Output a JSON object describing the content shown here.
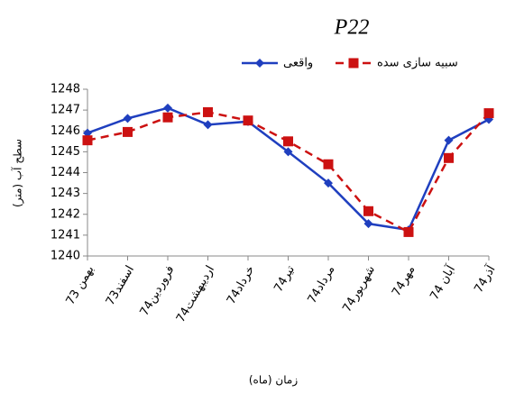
{
  "chart_data": {
    "type": "line",
    "title": "P22",
    "x_label": "زمان (ماه)",
    "y_label": "سطح آب (متر)",
    "categories": [
      "بهمن 73",
      "اسفند73",
      "فروردین74",
      "اردیبهشت74",
      "خرداد74",
      "تیر74",
      "مرداد74",
      "شهریور74",
      "مهر74",
      "آبان 74",
      "آذر74"
    ],
    "series": [
      {
        "name": "واقعی",
        "color": "#1f3fbf",
        "marker": "diamond",
        "dashed": false,
        "values": [
          1245.9,
          1246.6,
          1247.1,
          1246.3,
          1246.45,
          1245.0,
          1243.5,
          1241.55,
          1241.25,
          1245.55,
          1246.55
        ]
      },
      {
        "name": "سبیه سازی سده",
        "color": "#cc1111",
        "marker": "square",
        "dashed": true,
        "values": [
          1245.55,
          1245.95,
          1246.65,
          1246.9,
          1246.5,
          1245.5,
          1244.4,
          1242.15,
          1241.15,
          1244.7,
          1246.85
        ]
      }
    ],
    "ylim": [
      1240,
      1248
    ],
    "yticks": [
      1240,
      1241,
      1242,
      1243,
      1244,
      1245,
      1246,
      1247,
      1248
    ],
    "grid": false
  }
}
